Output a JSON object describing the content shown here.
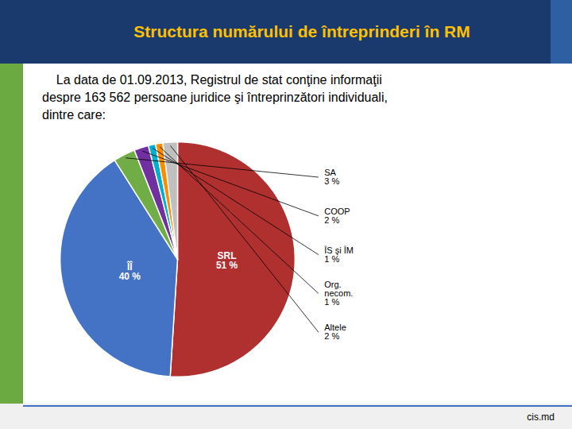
{
  "chart_data": {
    "type": "pie",
    "title": "Structura numărului de întreprinderi în RM",
    "subtitle": [
      "    La data de 01.09.2013, Registrul de stat conţine informaţii",
      "despre 163 562 persoane juridice şi întreprinzători individuali,",
      "dintre care:"
    ],
    "categories": [
      "SRL",
      "ÎÎ",
      "SA",
      "COOP",
      "ÎS şi ÎM",
      "Org.\nnecom.",
      "Altele"
    ],
    "values": [
      51,
      40,
      3,
      2,
      1,
      1,
      2
    ],
    "value_labels": [
      "51 %",
      "40 %",
      "3 %",
      "2 %",
      "1 %",
      "1 %",
      "2 %"
    ],
    "colors": [
      "#b03030",
      "#4472c4",
      "#70ad47",
      "#7030a0",
      "#00b0d0",
      "#ff8c00",
      "#c0c0c0"
    ],
    "data_labels": true,
    "caption": "cis.md"
  }
}
